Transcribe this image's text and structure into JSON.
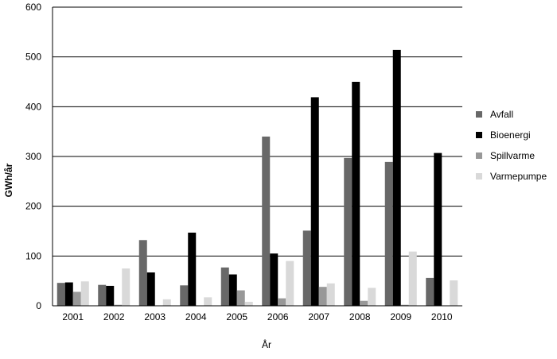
{
  "chart_data": {
    "type": "bar",
    "title": "",
    "xlabel": "År",
    "ylabel": "GWh/år",
    "ylim": [
      0,
      600
    ],
    "yticks": [
      0,
      100,
      200,
      300,
      400,
      500,
      600
    ],
    "grid": true,
    "legend_position": "right",
    "categories": [
      "2001",
      "2002",
      "2003",
      "2004",
      "2005",
      "2006",
      "2007",
      "2008",
      "2009",
      "2010"
    ],
    "series": [
      {
        "name": "Avfall",
        "color": "#686868",
        "values": [
          46,
          42,
          132,
          41,
          77,
          340,
          151,
          297,
          289,
          56
        ]
      },
      {
        "name": "Bioenergi",
        "color": "#000000",
        "values": [
          47,
          40,
          67,
          147,
          63,
          105,
          419,
          450,
          514,
          307
        ]
      },
      {
        "name": "Spillvarme",
        "color": "#989898",
        "values": [
          28,
          2,
          0,
          0,
          31,
          15,
          38,
          10,
          2,
          0
        ]
      },
      {
        "name": "Varmepumpe",
        "color": "#d9d9d9",
        "values": [
          49,
          75,
          13,
          17,
          8,
          90,
          45,
          36,
          109,
          51
        ]
      }
    ]
  }
}
